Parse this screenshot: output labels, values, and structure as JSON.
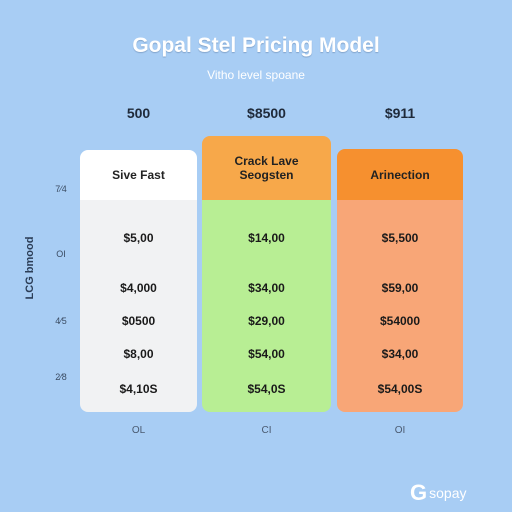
{
  "header": {
    "title": "Gopal Stel Pricing Model",
    "subtitle": "Vitho level spoane"
  },
  "side_labels": [
    "7⁄4",
    "OI",
    "4⁄5",
    "2⁄8"
  ],
  "side_title": "LCG bmood",
  "columns": [
    {
      "top_price": "500",
      "header": [
        "Sive Fast"
      ],
      "prices": [
        "$5,00",
        "$4,000",
        "$0500",
        "$8,00",
        "$4,10S"
      ],
      "footer": "OL"
    },
    {
      "top_price": "$8500",
      "header": [
        "Crack Lave",
        "Seogsten"
      ],
      "prices": [
        "$14,00",
        "$34,00",
        "$29,00",
        "$54,00",
        "$54,0S"
      ],
      "footer": "CI"
    },
    {
      "top_price": "$911",
      "header": [
        "Arinection"
      ],
      "prices": [
        "$5,500",
        "$59,00",
        "$54000",
        "$34,00",
        "$54,00S"
      ],
      "footer": "OI"
    }
  ],
  "logo": "sopay"
}
